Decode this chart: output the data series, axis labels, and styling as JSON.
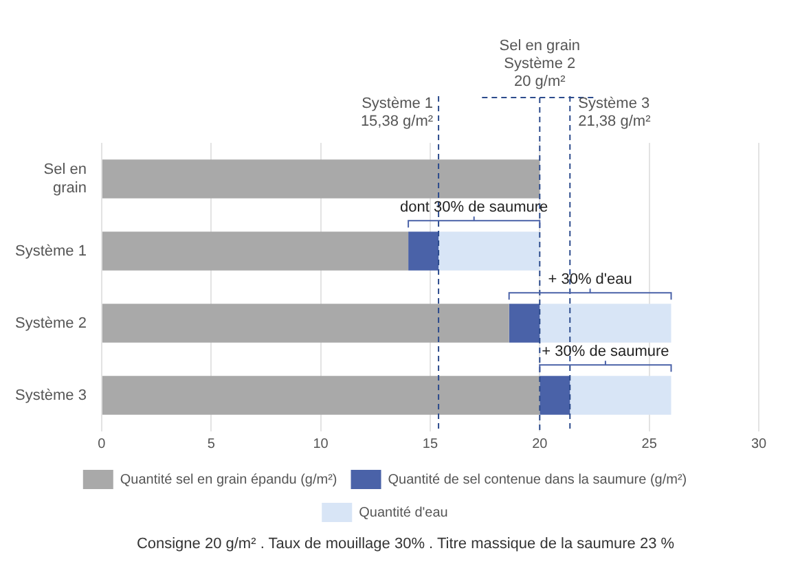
{
  "chart_data": {
    "type": "bar",
    "orientation": "horizontal",
    "stacked": true,
    "categories": [
      "Sel en grain",
      "Système 1",
      "Système 2",
      "Système 3"
    ],
    "series": [
      {
        "name": "Quantité sel en grain épandu (g/m²)",
        "color": "#a9a9a9",
        "values": [
          20,
          14,
          18.6,
          20
        ]
      },
      {
        "name": "Quantité de sel contenue dans la saumure (g/m²)",
        "color": "#4a62a8",
        "values": [
          null,
          1.38,
          1.4,
          1.38
        ]
      },
      {
        "name": "Quantité d'eau",
        "color": "#d8e5f6",
        "values": [
          null,
          4.62,
          6,
          4.62
        ]
      }
    ],
    "xlim": [
      0,
      30
    ],
    "xticks": [
      0,
      5,
      10,
      15,
      20,
      25,
      30
    ],
    "grid": "x",
    "legend": "bottom",
    "ref_lines": [
      {
        "axis": "x",
        "value": 15.38,
        "label": "Système 1\n15,38 g/m²",
        "color": "#2b4a8c",
        "line_style": "dashed"
      },
      {
        "axis": "x",
        "value": 20,
        "label": "Sel en grain\nSystème 2\n20 g/m²",
        "color": "#2b4a8c",
        "line_style": "dashed"
      },
      {
        "axis": "x",
        "value": 21.38,
        "label": "Système 3\n21,38 g/m²",
        "color": "#2b4a8c",
        "line_style": "dashed"
      }
    ],
    "annotations": [
      "dont 30% de saumure",
      "+ 30% d'eau",
      "+ 30% de saumure",
      "Consigne 20 g/m² . Taux de mouillage 30% . Titre massique de la saumure 23 %"
    ]
  }
}
